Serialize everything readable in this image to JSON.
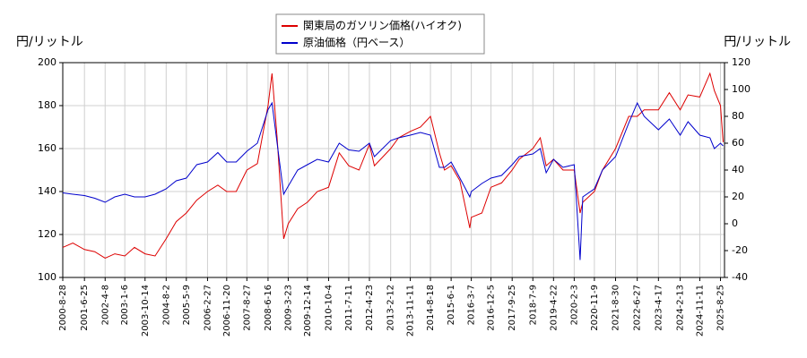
{
  "chart_data": {
    "type": "line",
    "y_label": "円/リットル",
    "y2_label": "円/リットル",
    "x": [
      "2000-8-28",
      "2001-1-15",
      "2001-6-25",
      "2001-11-15",
      "2002-4-8",
      "2002-8-20",
      "2003-1-6",
      "2003-5-20",
      "2003-10-14",
      "2004-3-1",
      "2004-8-2",
      "2004-12-20",
      "2005-5-9",
      "2005-10-1",
      "2006-2-27",
      "2006-7-20",
      "2006-11-20",
      "2007-4-1",
      "2007-8-27",
      "2008-1-20",
      "2008-6-16",
      "2008-8-10",
      "2008-10-20",
      "2009-1-19",
      "2009-3-23",
      "2009-8-1",
      "2009-12-14",
      "2010-5-1",
      "2010-10-4",
      "2011-3-1",
      "2011-7-11",
      "2011-12-1",
      "2012-4-23",
      "2012-7-1",
      "2013-2-12",
      "2013-6-1",
      "2013-11-11",
      "2014-4-1",
      "2014-8-18",
      "2014-12-20",
      "2015-3-1",
      "2015-6-1",
      "2015-10-1",
      "2016-2-15",
      "2016-3-7",
      "2016-8-1",
      "2016-12-5",
      "2017-5-1",
      "2017-9-25",
      "2018-1-1",
      "2018-7-9",
      "2018-10-20",
      "2019-1-10",
      "2019-4-22",
      "2019-9-1",
      "2020-2-3",
      "2020-4-25",
      "2020-6-1",
      "2020-11-9",
      "2021-3-1",
      "2021-8-30",
      "2022-3-1",
      "2022-6-27",
      "2022-10-1",
      "2023-4-17",
      "2023-9-15",
      "2024-2-13",
      "2024-6-1",
      "2024-11-11",
      "2025-4-1",
      "2025-6-1",
      "2025-8-25",
      "2025-10-1"
    ],
    "series": [
      {
        "name": "関東局のガソリン価格(ハイオク)",
        "color": "#dd0000",
        "axis": "y",
        "values": [
          114,
          116,
          113,
          112,
          109,
          111,
          110,
          114,
          111,
          110,
          118,
          126,
          130,
          136,
          140,
          143,
          140,
          140,
          150,
          153,
          180,
          195,
          165,
          118,
          125,
          132,
          135,
          140,
          142,
          158,
          152,
          150,
          162,
          152,
          160,
          165,
          168,
          170,
          175,
          158,
          150,
          152,
          145,
          123,
          128,
          130,
          142,
          144,
          150,
          155,
          160,
          165,
          152,
          155,
          150,
          150,
          130,
          135,
          140,
          150,
          160,
          175,
          175,
          178,
          178,
          186,
          178,
          185,
          184,
          195,
          187,
          180,
          163
        ]
      },
      {
        "name": "原油価格（円ベース）",
        "color": "#0000cc",
        "axis": "y2",
        "values": [
          23,
          22,
          21,
          19,
          16,
          20,
          22,
          20,
          20,
          22,
          26,
          32,
          34,
          44,
          46,
          53,
          46,
          46,
          54,
          60,
          85,
          90,
          60,
          22,
          28,
          40,
          44,
          48,
          46,
          60,
          55,
          54,
          60,
          50,
          62,
          64,
          66,
          68,
          66,
          42,
          42,
          46,
          34,
          20,
          24,
          30,
          34,
          36,
          44,
          50,
          52,
          56,
          38,
          48,
          42,
          44,
          -27,
          20,
          26,
          40,
          50,
          75,
          90,
          80,
          70,
          78,
          66,
          76,
          66,
          64,
          56,
          60,
          58
        ]
      }
    ],
    "xlim": [
      "2000-8-28",
      "2025-10-20"
    ],
    "xticks": [
      "2000-8-28",
      "2001-6-25",
      "2002-4-8",
      "2003-1-6",
      "2003-10-14",
      "2004-8-2",
      "2005-5-9",
      "2006-2-27",
      "2006-11-20",
      "2007-8-27",
      "2008-6-16",
      "2009-3-23",
      "2009-12-14",
      "2010-10-4",
      "2011-7-11",
      "2012-4-23",
      "2013-2-12",
      "2013-11-11",
      "2014-8-18",
      "2015-6-1",
      "2016-3-7",
      "2016-12-5",
      "2017-9-25",
      "2018-7-9",
      "2019-4-22",
      "2020-2-3",
      "2020-11-9",
      "2021-8-30",
      "2022-6-27",
      "2023-4-17",
      "2024-2-13",
      "2024-11-11",
      "2025-8-25"
    ],
    "ylim": [
      100,
      200
    ],
    "yticks": [
      100,
      120,
      140,
      160,
      180,
      200
    ],
    "y2lim": [
      -40,
      120
    ],
    "y2ticks": [
      -40,
      -20,
      0,
      20,
      40,
      60,
      80,
      100,
      120
    ],
    "grid": true,
    "legend": "top"
  }
}
